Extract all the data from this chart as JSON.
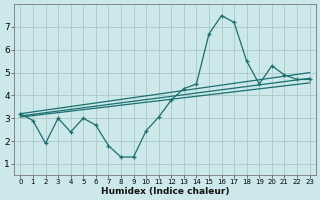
{
  "xlabel": "Humidex (Indice chaleur)",
  "bg_color": "#cce8e8",
  "grid_color": "#b0cccc",
  "line_color": "#1a7070",
  "xlim": [
    -0.5,
    23.5
  ],
  "ylim": [
    0.5,
    8.0
  ],
  "yticks": [
    1,
    2,
    3,
    4,
    5,
    6,
    7
  ],
  "xticks": [
    0,
    1,
    2,
    3,
    4,
    5,
    6,
    7,
    8,
    9,
    10,
    11,
    12,
    13,
    14,
    15,
    16,
    17,
    18,
    19,
    20,
    21,
    22,
    23
  ],
  "line1_x": [
    0,
    1,
    2,
    3,
    4,
    5,
    6,
    7,
    8,
    9,
    10,
    11,
    12,
    13,
    14,
    15,
    16,
    17,
    18,
    19,
    20,
    21,
    22,
    23
  ],
  "line1_y": [
    3.2,
    2.9,
    1.9,
    3.0,
    2.4,
    3.0,
    2.7,
    1.8,
    1.3,
    1.3,
    2.45,
    3.05,
    3.8,
    4.3,
    4.5,
    6.7,
    7.5,
    7.2,
    5.5,
    4.5,
    5.3,
    4.9,
    4.7,
    4.7
  ],
  "line2_x": [
    0,
    23
  ],
  "line2_y": [
    3.1,
    4.75
  ],
  "line3_x": [
    0,
    23
  ],
  "line3_y": [
    3.2,
    5.0
  ],
  "line4_x": [
    0,
    23
  ],
  "line4_y": [
    3.05,
    4.55
  ]
}
